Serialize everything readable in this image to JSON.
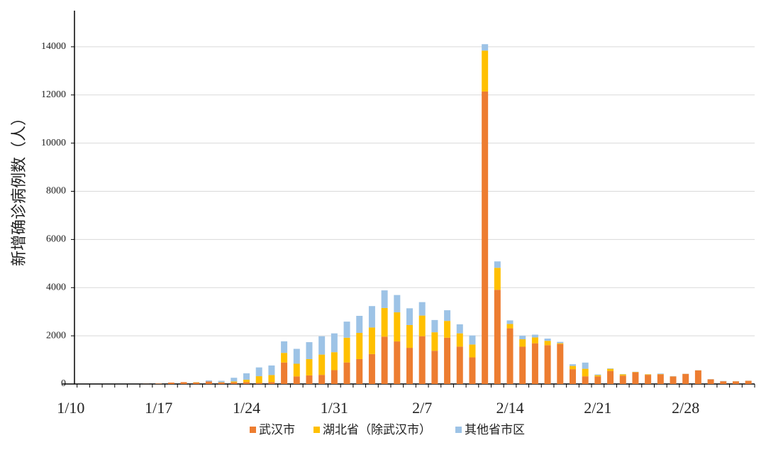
{
  "chart_data": {
    "type": "stacked_bar",
    "y_label": "新增确诊病例数（人）",
    "categories": [
      "1/10",
      null,
      null,
      null,
      null,
      null,
      null,
      "1/17",
      null,
      null,
      null,
      null,
      null,
      null,
      "1/24",
      null,
      null,
      null,
      null,
      null,
      null,
      "1/31",
      null,
      null,
      null,
      null,
      null,
      null,
      "2/7",
      null,
      null,
      null,
      null,
      null,
      null,
      "2/14",
      null,
      null,
      null,
      null,
      null,
      null,
      "2/21",
      null,
      null,
      null,
      null,
      null,
      null,
      "2/28",
      null,
      null,
      null,
      null,
      null
    ],
    "series": [
      {
        "name": "武汉市",
        "color": "#ed7d31",
        "values": [
          0,
          0,
          0,
          0,
          0,
          0,
          4,
          17,
          59,
          77,
          60,
          105,
          62,
          70,
          77,
          46,
          80,
          892,
          315,
          356,
          378,
          576,
          894,
          1033,
          1242,
          1967,
          1766,
          1501,
          1985,
          1379,
          1921,
          1552,
          1104,
          12143,
          3910,
          2311,
          1548,
          1690,
          1612,
          1660,
          615,
          319,
          314,
          541,
          348,
          485,
          380,
          401,
          313,
          420,
          565,
          193,
          114,
          111,
          131
        ]
      },
      {
        "name": "湖北省（除武汉市）",
        "color": "#ffc000",
        "values": [
          0,
          0,
          0,
          0,
          0,
          0,
          0,
          0,
          0,
          0,
          12,
          0,
          10,
          35,
          103,
          277,
          291,
          399,
          525,
          676,
          842,
          744,
          1027,
          1088,
          1103,
          1189,
          1209,
          946,
          856,
          768,
          697,
          551,
          534,
          1697,
          913,
          180,
          308,
          243,
          181,
          33,
          134,
          312,
          52,
          89,
          50,
          14,
          21,
          10,
          5,
          3,
          5,
          3,
          0,
          4,
          3
        ]
      },
      {
        "name": "其他省市区",
        "color": "#9dc3e6",
        "values": [
          0,
          0,
          0,
          0,
          0,
          0,
          0,
          0,
          0,
          0,
          5,
          44,
          59,
          154,
          264,
          365,
          398,
          480,
          619,
          705,
          762,
          782,
          669,
          708,
          890,
          731,
          719,
          696,
          558,
          509,
          444,
          375,
          377,
          268,
          267,
          150,
          153,
          115,
          93,
          56,
          71,
          258,
          31,
          18,
          11,
          9,
          5,
          22,
          9,
          4,
          3,
          6,
          11,
          4,
          5
        ]
      }
    ],
    "ylim": [
      0,
      15500
    ],
    "yticks": [
      0,
      2000,
      4000,
      6000,
      8000,
      10000,
      12000,
      14000
    ],
    "grid": true,
    "legend": "bottom"
  }
}
